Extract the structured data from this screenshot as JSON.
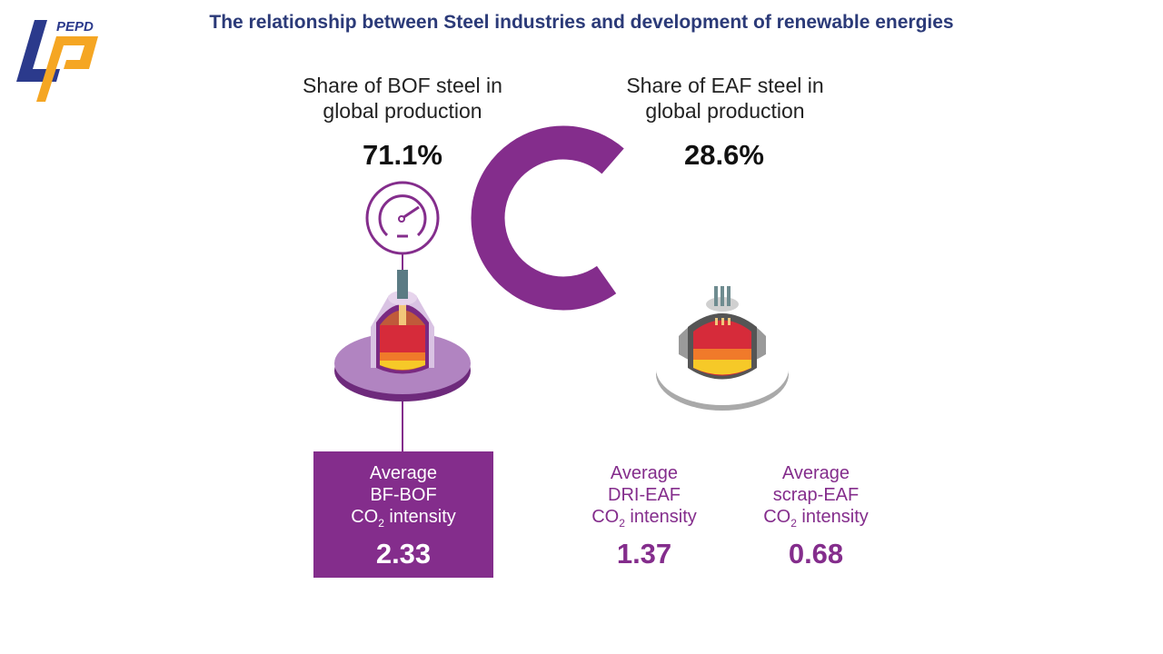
{
  "logo": {
    "text": "PEPD",
    "colors": {
      "blue": "#2b3a8c",
      "orange": "#f5a623"
    }
  },
  "title": "The relationship between Steel industries and development of renewable energies",
  "bof": {
    "share_line1": "Share of BOF steel in",
    "share_line2": "global production",
    "percent": "71.1%",
    "share_value": 71.1
  },
  "eaf": {
    "share_line1": "Share of EAF steel in",
    "share_line2": "global production",
    "percent": "28.6%"
  },
  "intensity": [
    {
      "line1": "Average",
      "line2": "BF-BOF",
      "co": "CO",
      "sub": "2",
      "rest": " intensity",
      "value": "2.33"
    },
    {
      "line1": "Average",
      "line2": "DRI-EAF",
      "co": "CO",
      "sub": "2",
      "rest": " intensity",
      "value": "1.37"
    },
    {
      "line1": "Average",
      "line2": "scrap-EAF",
      "co": "CO",
      "sub": "2",
      "rest": " intensity",
      "value": "0.68"
    }
  ],
  "colors": {
    "purple": "#842d8c",
    "title": "#2b3a78"
  }
}
